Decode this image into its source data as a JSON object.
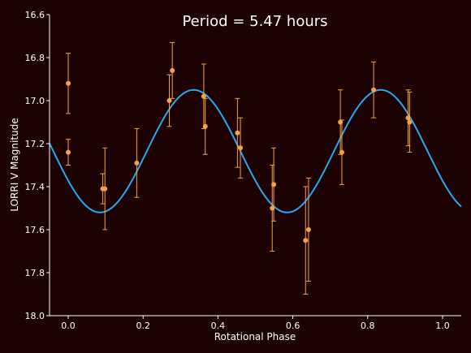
{
  "chart_data": {
    "type": "scatter",
    "title": "Period = 5.47 hours",
    "xlabel": "Rotational Phase",
    "ylabel": "LORRI V Magnitude",
    "xlim": [
      -0.05,
      1.05
    ],
    "ylim": [
      16.6,
      18.0
    ],
    "y_inverted": true,
    "x_ticks": [
      "0.0",
      "0.2",
      "0.4",
      "0.6",
      "0.8",
      "1.0"
    ],
    "y_ticks": [
      "16.6",
      "16.8",
      "17.0",
      "17.2",
      "17.4",
      "17.6",
      "17.8",
      "18.0"
    ],
    "grid": false,
    "series": [
      {
        "kind": "points-with-error-bars",
        "color": "#f5a247",
        "points": [
          {
            "x": 0.0,
            "y": 16.92,
            "err": 0.14
          },
          {
            "x": 0.0,
            "y": 17.24,
            "err": 0.06
          },
          {
            "x": 0.092,
            "y": 17.41,
            "err": 0.07
          },
          {
            "x": 0.098,
            "y": 17.41,
            "err": 0.19
          },
          {
            "x": 0.183,
            "y": 17.29,
            "err": 0.16
          },
          {
            "x": 0.27,
            "y": 17.0,
            "err": 0.12
          },
          {
            "x": 0.278,
            "y": 16.86,
            "err": 0.13
          },
          {
            "x": 0.362,
            "y": 16.98,
            "err": 0.15
          },
          {
            "x": 0.366,
            "y": 17.12,
            "err": 0.13
          },
          {
            "x": 0.452,
            "y": 17.15,
            "err": 0.16
          },
          {
            "x": 0.46,
            "y": 17.22,
            "err": 0.14
          },
          {
            "x": 0.545,
            "y": 17.5,
            "err": 0.2
          },
          {
            "x": 0.549,
            "y": 17.39,
            "err": 0.17
          },
          {
            "x": 0.634,
            "y": 17.65,
            "err": 0.25
          },
          {
            "x": 0.642,
            "y": 17.6,
            "err": 0.24
          },
          {
            "x": 0.727,
            "y": 17.1,
            "err": 0.15
          },
          {
            "x": 0.731,
            "y": 17.24,
            "err": 0.15
          },
          {
            "x": 0.816,
            "y": 16.95,
            "err": 0.13
          },
          {
            "x": 0.908,
            "y": 17.08,
            "err": 0.13
          },
          {
            "x": 0.912,
            "y": 17.1,
            "err": 0.14
          }
        ]
      },
      {
        "kind": "model-curve",
        "color": "#2aa8f2",
        "model": "mean + amp*sin(2*pi*2*(phase - phase0))",
        "mean": 17.235,
        "amplitude": 0.285,
        "phase0": 0.46,
        "harmonics": 2
      }
    ]
  }
}
